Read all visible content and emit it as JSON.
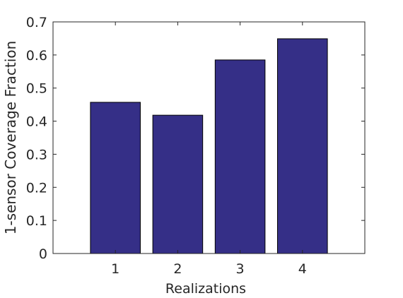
{
  "chart_data": {
    "type": "bar",
    "x": [
      1,
      2,
      3,
      4
    ],
    "values": [
      0.457,
      0.418,
      0.585,
      0.649
    ],
    "color": "#352f87",
    "xlabel": "Realizations",
    "ylabel": "1-sensor Coverage Fraction",
    "xlim": [
      0,
      5
    ],
    "xticks": [
      1,
      2,
      3,
      4
    ],
    "ylim": [
      0,
      0.7
    ],
    "yticks": [
      0,
      0.1,
      0.2,
      0.3,
      0.4,
      0.5,
      0.6,
      0.7
    ],
    "bar_width": 0.8
  }
}
